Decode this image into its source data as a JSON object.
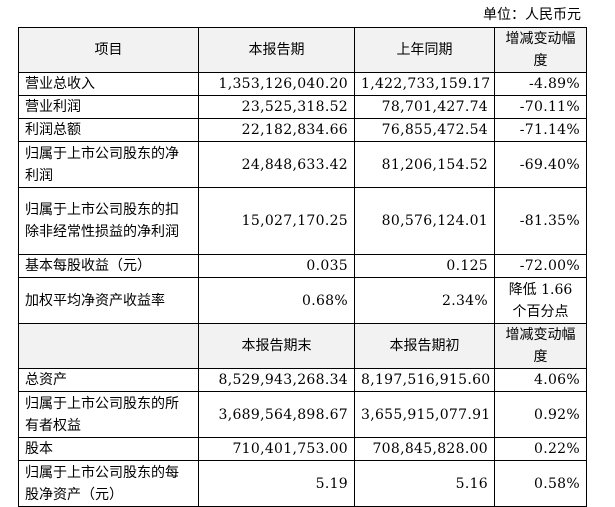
{
  "unit_label": "单位：人民币元",
  "header1": [
    "项目",
    "本报告期",
    "上年同期",
    "增减变动幅度"
  ],
  "rows1": [
    {
      "item": "营业总收入",
      "cur": "1,353,126,040.20",
      "prev": "1,422,733,159.17",
      "chg": "-4.89%"
    },
    {
      "item": "营业利润",
      "cur": "23,525,318.52",
      "prev": "78,701,427.74",
      "chg": "-70.11%"
    },
    {
      "item": "利润总额",
      "cur": "22,182,834.66",
      "prev": "76,855,472.54",
      "chg": "-71.14%"
    },
    {
      "item": "归属于上市公司股东的净利润",
      "cur": "24,848,633.42",
      "prev": "81,206,154.52",
      "chg": "-69.40%"
    },
    {
      "item": "归属于上市公司股东的扣除非经常性损益的净利润",
      "cur": "15,027,170.25",
      "prev": "80,576,124.01",
      "chg": "-81.35%"
    },
    {
      "item": "基本每股收益（元）",
      "cur": "0.035",
      "prev": "0.125",
      "chg": "-72.00%"
    },
    {
      "item": "加权平均净资产收益率",
      "cur": "0.68%",
      "prev": "2.34%",
      "chg": "降低 1.66 个百分点"
    }
  ],
  "header2": [
    "本报告期末",
    "本报告期初",
    "增减变动幅度"
  ],
  "rows2": [
    {
      "item": "总资产",
      "cur": "8,529,943,268.34",
      "prev": "8,197,516,915.60",
      "chg": "4.06%"
    },
    {
      "item": "归属于上市公司股东的所有者权益",
      "cur": "3,689,564,898.67",
      "prev": "3,655,915,077.91",
      "chg": "0.92%"
    },
    {
      "item": "股本",
      "cur": "710,401,753.00",
      "prev": "708,845,828.00",
      "chg": "0.22%"
    },
    {
      "item": "归属于上市公司股东的每股净资产（元）",
      "cur": "5.19",
      "prev": "5.16",
      "chg": "0.58%"
    }
  ]
}
